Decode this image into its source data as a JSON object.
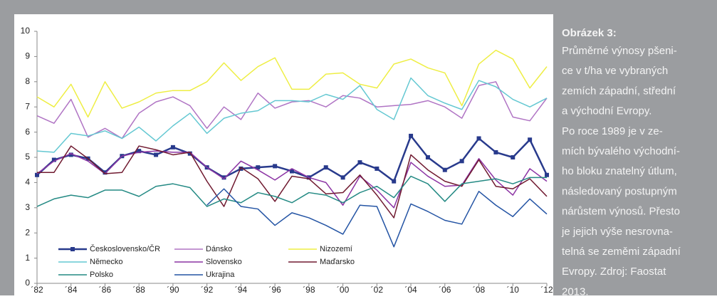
{
  "chart_data": {
    "type": "line",
    "x": [
      1982,
      1983,
      1984,
      1985,
      1986,
      1987,
      1988,
      1989,
      1990,
      1991,
      1992,
      1993,
      1994,
      1995,
      1996,
      1997,
      1998,
      1999,
      2000,
      2001,
      2002,
      2003,
      2004,
      2005,
      2006,
      2007,
      2008,
      2009,
      2010,
      2011,
      2012
    ],
    "xlim": [
      1982,
      2012
    ],
    "xticks": [
      {
        "value": 1982,
        "label": "´82"
      },
      {
        "value": 1984,
        "label": "´84"
      },
      {
        "value": 1986,
        "label": "´86"
      },
      {
        "value": 1988,
        "label": "´88"
      },
      {
        "value": 1990,
        "label": "´90"
      },
      {
        "value": 1992,
        "label": "´92"
      },
      {
        "value": 1994,
        "label": "´94"
      },
      {
        "value": 1996,
        "label": "´96"
      },
      {
        "value": 1998,
        "label": "´98"
      },
      {
        "value": 2000,
        "label": "´00"
      },
      {
        "value": 2002,
        "label": "´02"
      },
      {
        "value": 2004,
        "label": "´04"
      },
      {
        "value": 2006,
        "label": "´06"
      },
      {
        "value": 2008,
        "label": "´08"
      },
      {
        "value": 2010,
        "label": "´10"
      },
      {
        "value": 2012,
        "label": "´12"
      }
    ],
    "ylim": [
      0,
      10
    ],
    "yticks": [
      0,
      1,
      2,
      3,
      4,
      5,
      6,
      7,
      8,
      9,
      10
    ],
    "grid": false,
    "series": [
      {
        "name": "Československo/ČR",
        "color": "#283a8c",
        "marker": "square",
        "values": [
          4.3,
          4.9,
          5.1,
          4.95,
          4.4,
          5.05,
          5.25,
          5.1,
          5.4,
          5.15,
          4.6,
          4.2,
          4.55,
          4.6,
          4.65,
          4.45,
          4.2,
          4.6,
          4.2,
          4.8,
          4.55,
          4.05,
          5.85,
          5.0,
          4.5,
          4.85,
          5.75,
          5.2,
          5.0,
          5.7,
          4.3
        ]
      },
      {
        "name": "Dánsko",
        "color": "#b074c4",
        "values": [
          6.65,
          6.35,
          7.3,
          5.8,
          6.15,
          5.75,
          6.75,
          7.2,
          7.4,
          7.05,
          6.15,
          7.0,
          6.5,
          7.55,
          6.95,
          7.2,
          7.25,
          7.0,
          7.45,
          7.35,
          7.0,
          7.05,
          7.1,
          7.25,
          7.0,
          6.55,
          7.85,
          8.0,
          6.6,
          6.45,
          7.35
        ]
      },
      {
        "name": "Nizozemí",
        "color": "#eeee44",
        "values": [
          7.4,
          7.0,
          7.9,
          6.6,
          8.0,
          6.95,
          7.2,
          7.55,
          7.65,
          7.65,
          8.0,
          8.75,
          8.05,
          8.6,
          8.95,
          7.7,
          7.7,
          8.3,
          8.35,
          7.9,
          7.75,
          8.7,
          8.9,
          8.55,
          8.35,
          7.05,
          8.7,
          9.25,
          8.9,
          7.75,
          8.6
        ]
      },
      {
        "name": "Německo",
        "color": "#64c8d2",
        "values": [
          5.25,
          5.2,
          5.95,
          5.85,
          6.05,
          5.75,
          6.2,
          5.65,
          6.25,
          6.75,
          5.95,
          6.55,
          6.75,
          6.85,
          7.25,
          7.25,
          7.2,
          7.5,
          7.3,
          7.85,
          6.9,
          6.5,
          8.15,
          7.45,
          7.15,
          6.9,
          8.05,
          7.8,
          7.3,
          7.0,
          7.35
        ]
      },
      {
        "name": "Slovensko",
        "color": "#8c34a4",
        "values": [
          4.35,
          4.85,
          5.15,
          4.85,
          4.35,
          5.05,
          5.2,
          5.25,
          5.2,
          5.2,
          4.6,
          4.15,
          4.85,
          4.5,
          4.1,
          4.55,
          4.2,
          4.0,
          3.1,
          4.25,
          3.7,
          3.0,
          4.8,
          4.25,
          3.85,
          3.9,
          4.95,
          4.1,
          3.5,
          4.55,
          4.05
        ]
      },
      {
        "name": "Maďarsko",
        "color": "#701a30",
        "values": [
          4.4,
          4.4,
          5.45,
          4.95,
          4.35,
          4.4,
          5.45,
          5.3,
          5.1,
          5.2,
          4.05,
          3.05,
          4.6,
          4.15,
          3.25,
          4.25,
          4.15,
          3.55,
          3.6,
          4.3,
          3.5,
          2.6,
          5.1,
          4.5,
          4.05,
          3.85,
          4.9,
          3.85,
          3.75,
          4.15,
          3.45
        ]
      },
      {
        "name": "Polsko",
        "color": "#248a84",
        "values": [
          3.05,
          3.35,
          3.5,
          3.4,
          3.7,
          3.7,
          3.45,
          3.85,
          3.95,
          3.8,
          3.05,
          3.35,
          3.2,
          3.6,
          3.45,
          3.2,
          3.6,
          3.5,
          3.2,
          3.6,
          3.85,
          3.4,
          4.25,
          3.95,
          3.25,
          3.95,
          4.05,
          4.15,
          3.95,
          4.2,
          4.2
        ]
      },
      {
        "name": "Ukrajina",
        "color": "#2454a4",
        "values": [
          null,
          null,
          null,
          null,
          null,
          null,
          null,
          null,
          null,
          null,
          3.1,
          3.75,
          3.05,
          2.95,
          2.3,
          2.8,
          2.6,
          2.3,
          1.95,
          3.1,
          3.05,
          1.45,
          3.15,
          2.85,
          2.5,
          2.35,
          3.65,
          3.1,
          2.65,
          3.35,
          2.75
        ]
      }
    ]
  },
  "caption": {
    "title": "Obrázek 3:",
    "lines": [
      "Průměrné výnosy pšeni-",
      "ce v t/ha ve vybraných",
      "zemích západní, střední",
      "a východní Evropy.",
      "Po roce 1989 je v ze-",
      "mích bývalého východní-",
      "ho bloku znatelný útlum,",
      "následovaný postupným",
      "nárůstem výnosů. Přesto",
      "je jejich výše nesrovna-",
      "telná se zeměmi západní",
      "Evropy. Zdroj: Faostat",
      "2013."
    ]
  }
}
